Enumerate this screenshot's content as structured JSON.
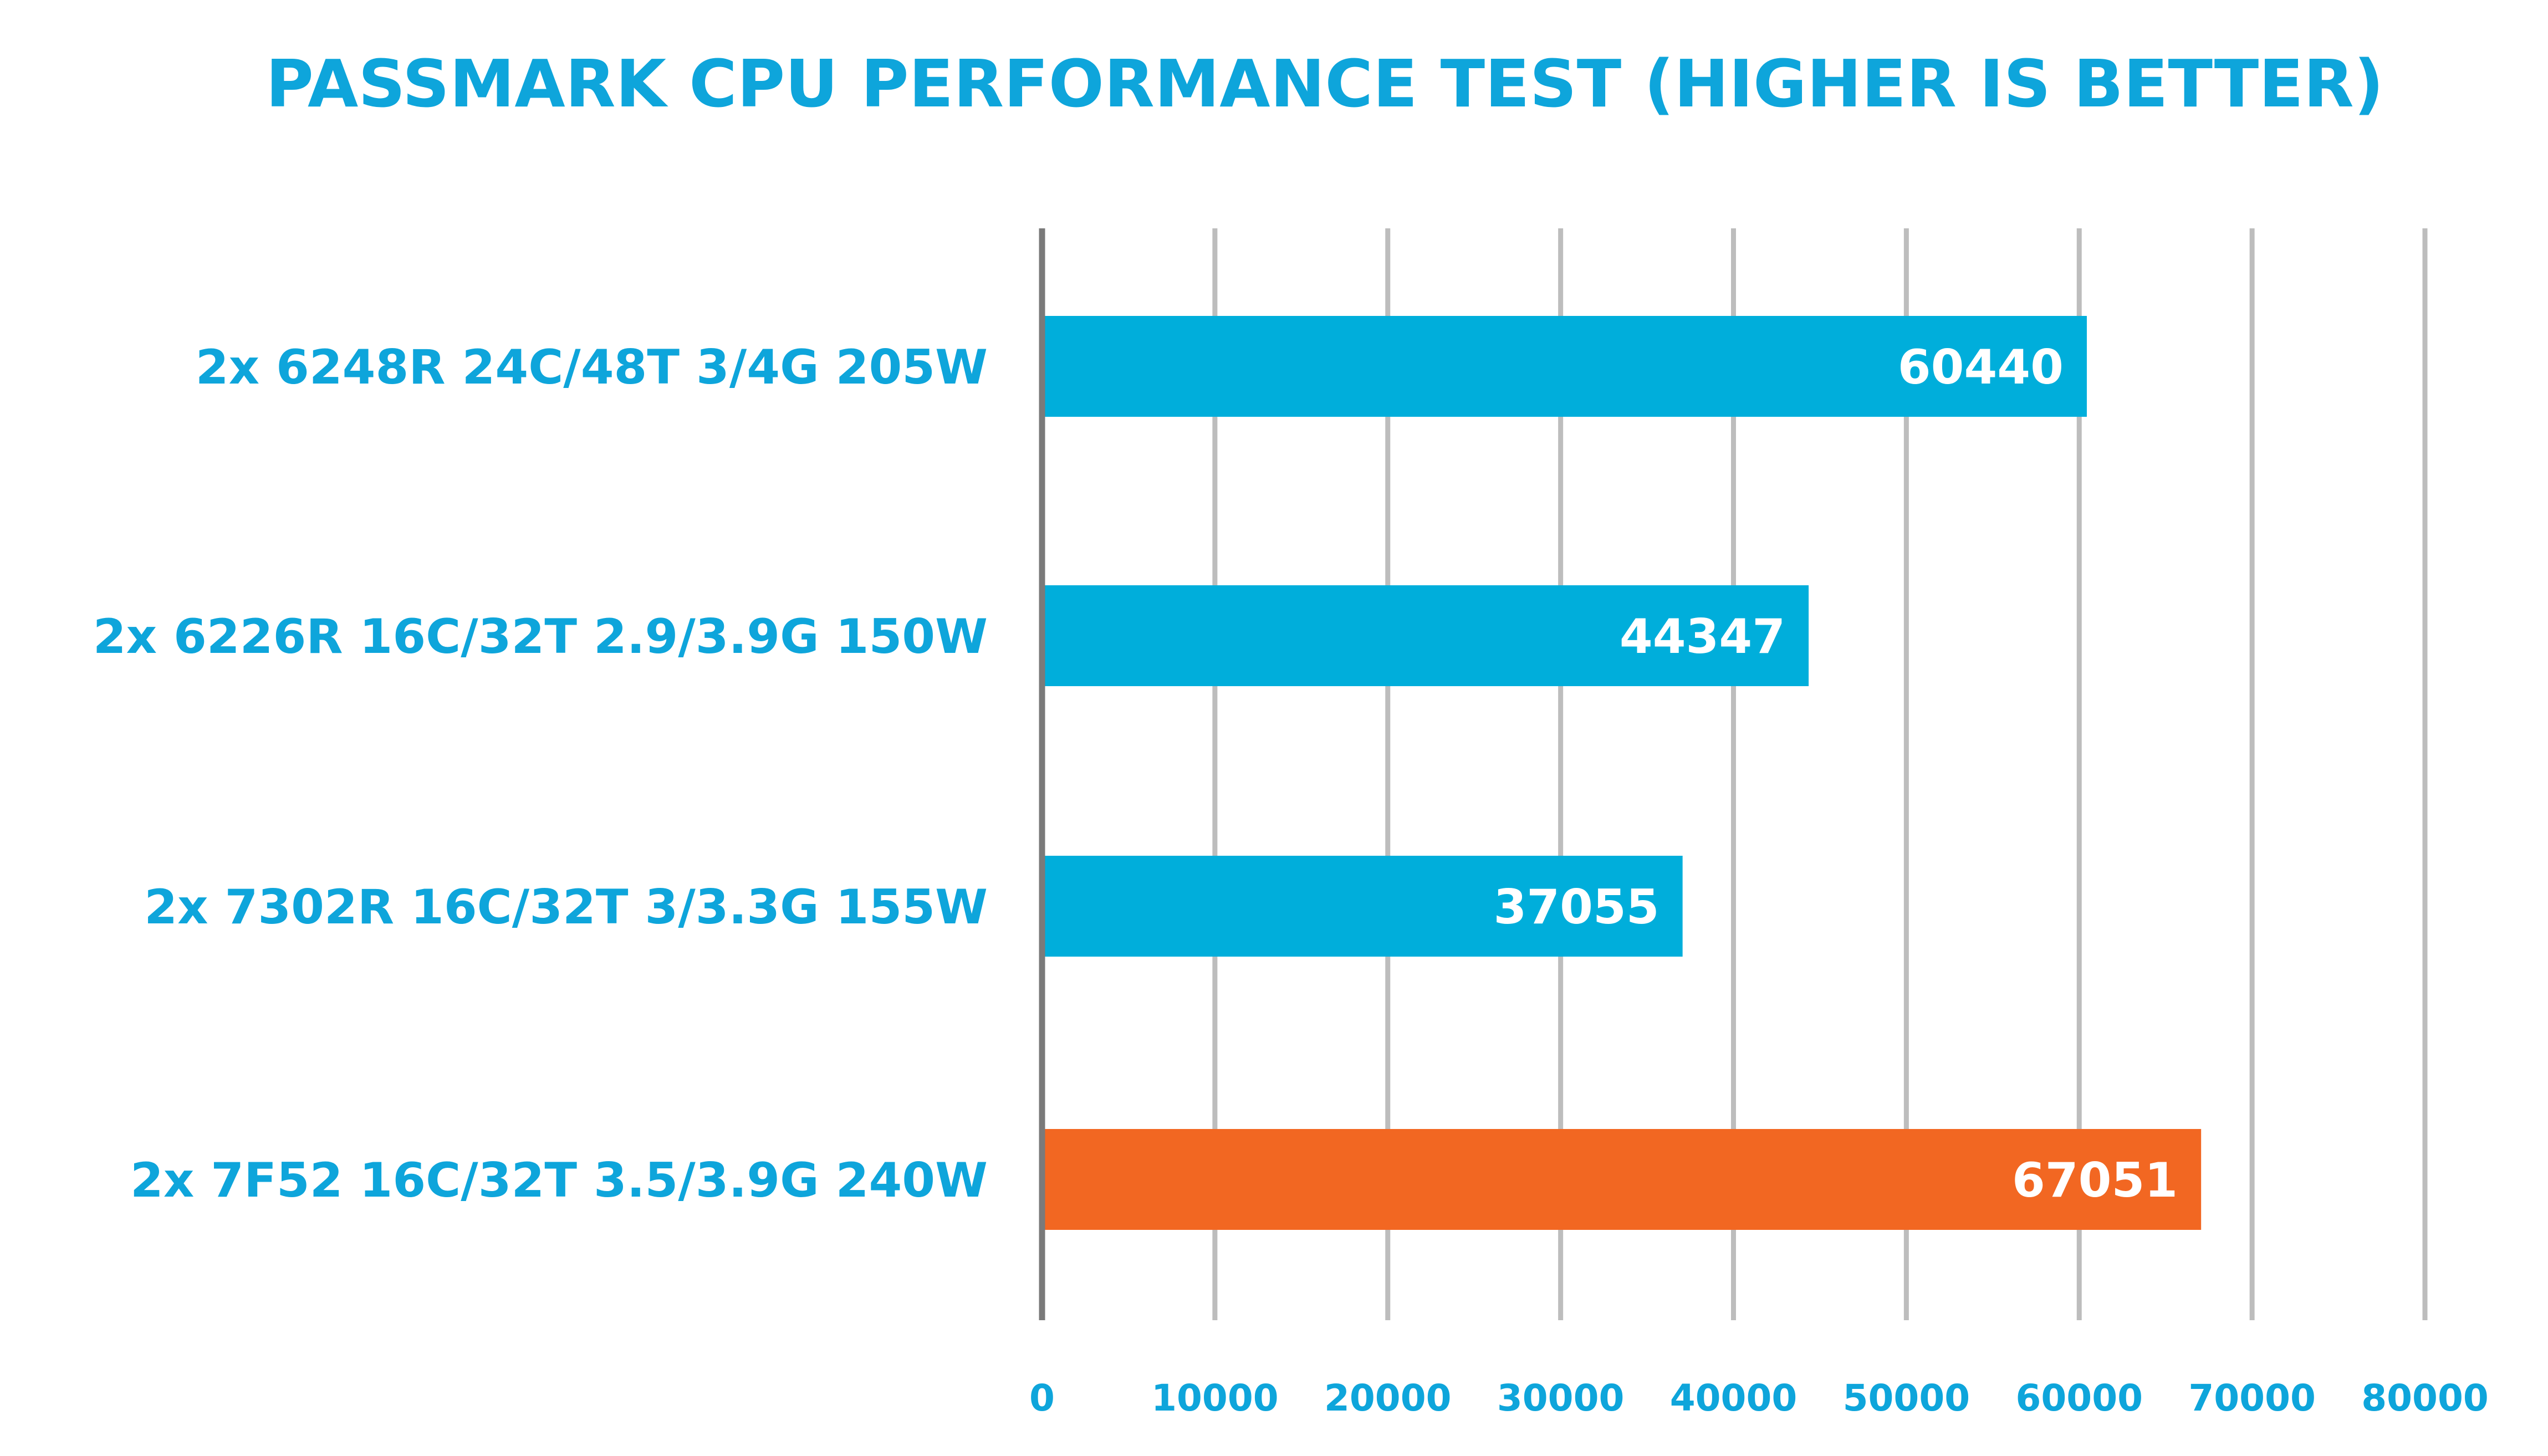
{
  "chart_data": {
    "type": "bar",
    "orientation": "horizontal",
    "title": "PASSMARK CPU PERFORMANCE TEST (HIGHER IS BETTER)",
    "categories": [
      "2x 6248R 24C/48T 3/4G 205W",
      "2x 6226R 16C/32T 2.9/3.9G 150W",
      "2x 7302R 16C/32T 3/3.3G 155W",
      "2x 7F52 16C/32T 3.5/3.9G 240W"
    ],
    "values": [
      60440,
      44347,
      37055,
      67051
    ],
    "value_labels": [
      "60440",
      "44347",
      "37055",
      "67051"
    ],
    "bar_colors": [
      "#00AEDB",
      "#00AEDB",
      "#00AEDB",
      "#F26722"
    ],
    "xlim": [
      0,
      80000
    ],
    "xticks": [
      0,
      10000,
      20000,
      30000,
      40000,
      50000,
      60000,
      70000,
      80000
    ],
    "xtick_labels": [
      "0",
      "10000",
      "20000",
      "30000",
      "40000",
      "50000",
      "60000",
      "70000",
      "80000"
    ],
    "grid": true,
    "legend": "none",
    "colors": {
      "text": "#0EA5DB",
      "value_text": "#FFFFFF",
      "grid": "#BDBDBD",
      "axis": "#7A7A7A"
    }
  }
}
